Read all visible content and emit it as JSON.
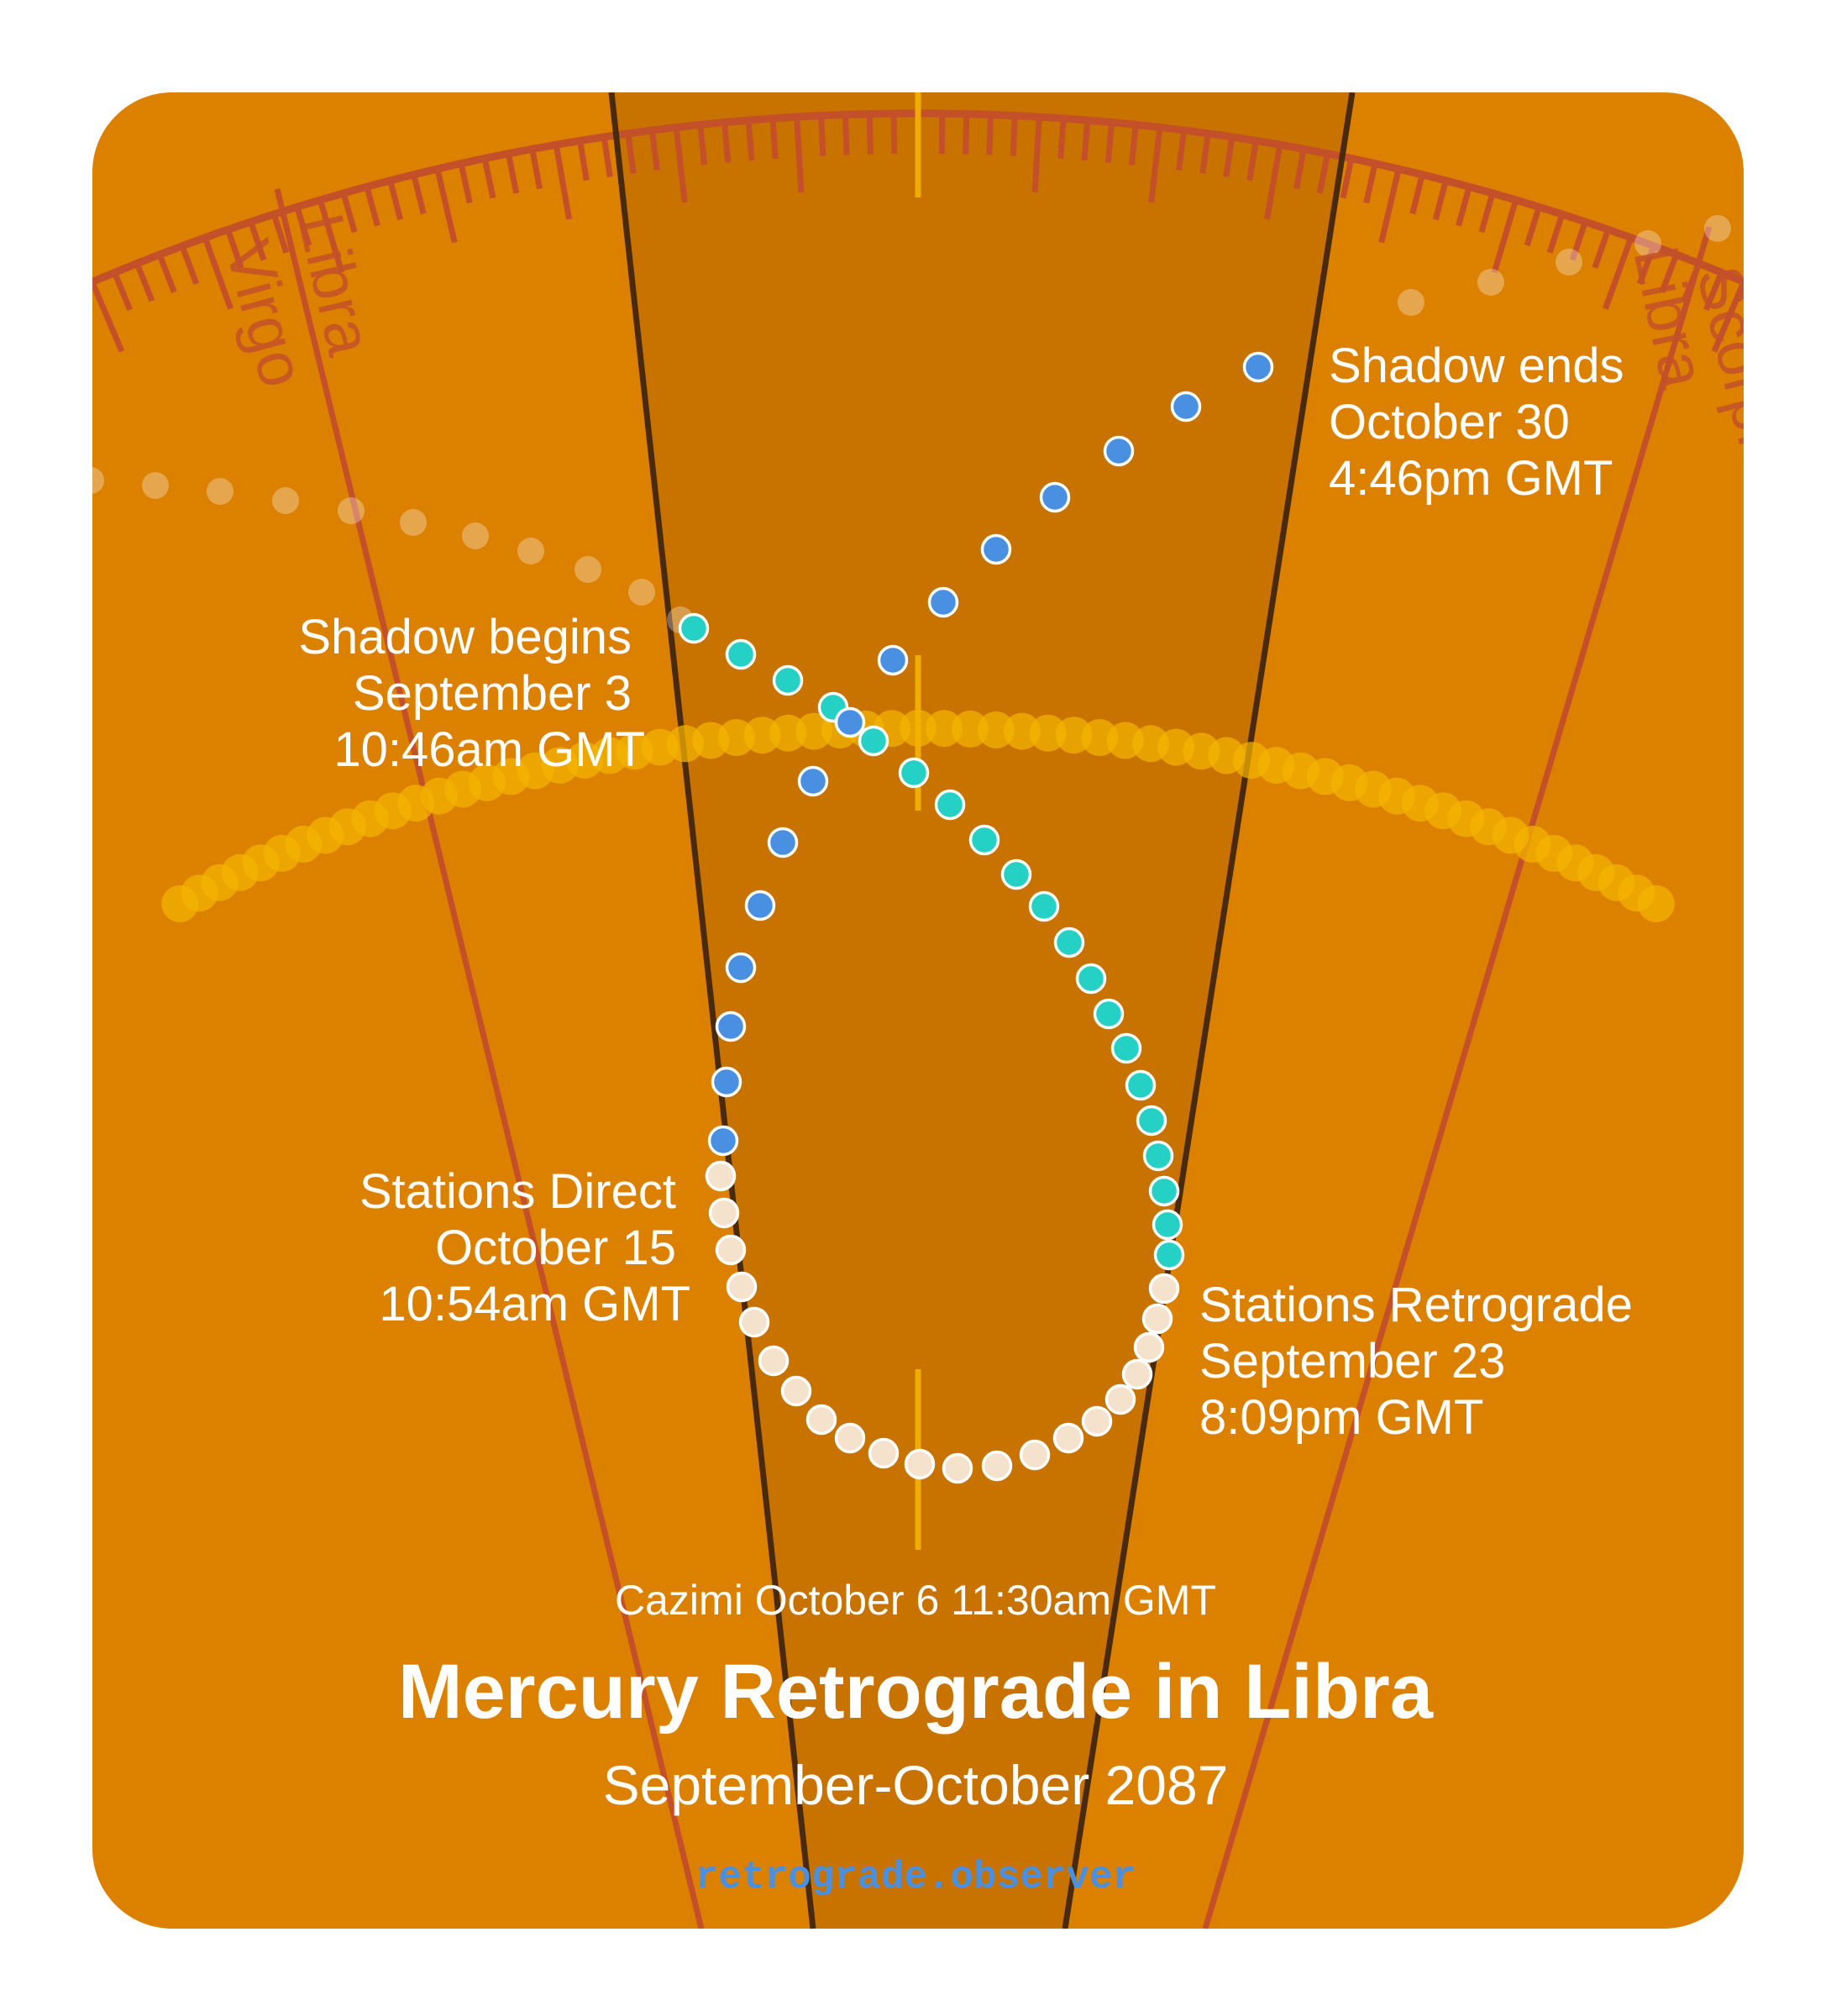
{
  "colors": {
    "panel": "#dc8000",
    "shadow_band": "#c87200",
    "ecliptic_red": "#c4502a",
    "band_edge": "#4a2a0c",
    "sun": "#f4b400",
    "shadow_phase": "#25d0c4",
    "retrograde_phase": "#f4e2cc",
    "post_shadow_phase": "#4a90e2",
    "text": "#ffffff"
  },
  "signs": {
    "left_outer": "Virgo",
    "left_inner": "Libra",
    "right_inner": "Libra",
    "right_outer": "Scorpio"
  },
  "events": {
    "shadow_begins": {
      "title": "Shadow begins",
      "date": "September 3",
      "time": "10:46am GMT"
    },
    "stations_retrograde": {
      "title": "Stations Retrograde",
      "date": "September 23",
      "time": "8:09pm GMT"
    },
    "stations_direct": {
      "title": "Stations Direct",
      "date": "October 15",
      "time": "10:54am GMT"
    },
    "shadow_ends": {
      "title": "Shadow ends",
      "date": "October 30",
      "time": "4:46pm GMT"
    }
  },
  "cazimi": "Cazimi October 6 11:30am GMT",
  "title": "Mercury Retrograde in Libra",
  "subtitle": "September-October 2087",
  "site": "retrograde.observer"
}
